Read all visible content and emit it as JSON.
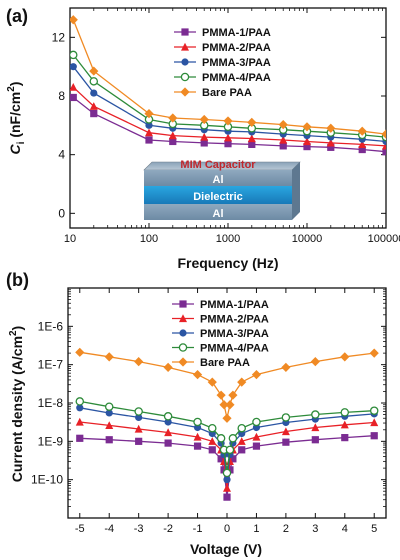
{
  "chart_data": [
    {
      "panel": "(a)",
      "type": "line",
      "xscale": "log",
      "xlabel": "Frequency (Hz)",
      "ylabel": "C_i (nF/cm^2)",
      "ylabel_parts": {
        "main": "C",
        "sub": "i",
        "unit": " (nF/cm",
        "sup": "2",
        "close": ")"
      },
      "xlim": [
        10,
        100000
      ],
      "ylim": [
        -1,
        14
      ],
      "xticks": [
        10,
        100,
        1000,
        10000,
        100000
      ],
      "yticks": [
        0,
        4,
        8,
        12
      ],
      "legend_position": "top-right",
      "series": [
        {
          "name": "PMMA-1/PAA",
          "color": "#7b2c92",
          "marker": "square",
          "x": [
            11,
            20,
            100,
            200,
            500,
            1000,
            2000,
            5000,
            10000,
            20000,
            50000,
            100000
          ],
          "y": [
            7.9,
            6.8,
            5.0,
            4.9,
            4.8,
            4.75,
            4.7,
            4.6,
            4.55,
            4.5,
            4.35,
            4.2
          ]
        },
        {
          "name": "PMMA-2/PAA",
          "color": "#e82127",
          "marker": "triangle",
          "x": [
            11,
            20,
            100,
            200,
            500,
            1000,
            2000,
            5000,
            10000,
            20000,
            50000,
            100000
          ],
          "y": [
            8.6,
            7.3,
            5.5,
            5.3,
            5.2,
            5.15,
            5.1,
            5.0,
            4.9,
            4.8,
            4.7,
            4.6
          ]
        },
        {
          "name": "PMMA-3/PAA",
          "color": "#2b55a3",
          "marker": "circle",
          "x": [
            11,
            20,
            100,
            200,
            500,
            1000,
            2000,
            5000,
            10000,
            20000,
            50000,
            100000
          ],
          "y": [
            10.0,
            8.2,
            6.0,
            5.8,
            5.7,
            5.6,
            5.55,
            5.4,
            5.3,
            5.2,
            5.05,
            4.9
          ]
        },
        {
          "name": "PMMA-4/PAA",
          "color": "#2e8b3a",
          "marker": "circle-open",
          "x": [
            11,
            20,
            100,
            200,
            500,
            1000,
            2000,
            5000,
            10000,
            20000,
            50000,
            100000
          ],
          "y": [
            10.8,
            9.0,
            6.4,
            6.1,
            6.0,
            5.9,
            5.8,
            5.7,
            5.6,
            5.5,
            5.35,
            5.2
          ]
        },
        {
          "name": "Bare PAA",
          "color": "#f08a24",
          "marker": "diamond",
          "x": [
            11,
            20,
            100,
            200,
            500,
            1000,
            2000,
            5000,
            10000,
            20000,
            50000,
            100000
          ],
          "y": [
            13.2,
            9.7,
            6.8,
            6.5,
            6.4,
            6.3,
            6.2,
            6.05,
            5.9,
            5.8,
            5.6,
            5.4
          ]
        }
      ],
      "inset": {
        "title": "MIM Capacitor",
        "layers": [
          "Al",
          "Dielectric",
          "Al"
        ]
      }
    },
    {
      "panel": "(b)",
      "type": "line",
      "yscale": "log",
      "xlabel": "Voltage (V)",
      "ylabel": "Current density (A/cm^2)",
      "ylabel_parts": {
        "main": "Current density (A/cm",
        "sup": "2",
        "close": ")"
      },
      "xlim": [
        -5.4,
        5.4
      ],
      "ylim": [
        1e-11,
        1e-05
      ],
      "xticks": [
        -5,
        -4,
        -3,
        -2,
        -1,
        0,
        1,
        2,
        3,
        4,
        5
      ],
      "ytick_labels": [
        "1E-10",
        "1E-9",
        "1E-8",
        "1E-7",
        "1E-6"
      ],
      "ytick_values": [
        1e-10,
        1e-09,
        1e-08,
        1e-07,
        1e-06
      ],
      "legend_position": "top-center",
      "series": [
        {
          "name": "PMMA-1/PAA",
          "color": "#7b2c92",
          "marker": "square",
          "x": [
            -5,
            -4,
            -3,
            -2,
            -1,
            -0.5,
            -0.2,
            -0.1,
            0,
            0.1,
            0.2,
            0.5,
            1,
            2,
            3,
            4,
            5
          ],
          "y": [
            1.2e-09,
            1.1e-09,
            1e-09,
            9e-10,
            7.5e-10,
            6e-10,
            3.5e-10,
            1.8e-10,
            3.5e-11,
            1.8e-10,
            3.5e-10,
            6e-10,
            7.5e-10,
            9.5e-10,
            1.1e-09,
            1.25e-09,
            1.4e-09
          ]
        },
        {
          "name": "PMMA-2/PAA",
          "color": "#e82127",
          "marker": "triangle",
          "x": [
            -5,
            -4,
            -3,
            -2,
            -1,
            -0.5,
            -0.2,
            -0.1,
            0,
            0.1,
            0.2,
            0.5,
            1,
            2,
            3,
            4,
            5
          ],
          "y": [
            3.2e-09,
            2.6e-09,
            2.1e-09,
            1.7e-09,
            1.3e-09,
            1e-09,
            6e-10,
            3e-10,
            6e-11,
            3e-10,
            6e-10,
            1e-09,
            1.3e-09,
            1.8e-09,
            2.3e-09,
            2.7e-09,
            3.1e-09
          ]
        },
        {
          "name": "PMMA-3/PAA",
          "color": "#2b55a3",
          "marker": "circle",
          "x": [
            -5,
            -4,
            -3,
            -2,
            -1,
            -0.5,
            -0.2,
            -0.1,
            0,
            0.1,
            0.2,
            0.5,
            1,
            2,
            3,
            4,
            5
          ],
          "y": [
            7.5e-09,
            5.5e-09,
            4.2e-09,
            3.2e-09,
            2.3e-09,
            1.6e-09,
            9e-10,
            4.5e-10,
            1e-10,
            4.5e-10,
            9e-10,
            1.6e-09,
            2.3e-09,
            3.1e-09,
            3.8e-09,
            4.5e-09,
            5.2e-09
          ]
        },
        {
          "name": "PMMA-4/PAA",
          "color": "#2e8b3a",
          "marker": "circle-open",
          "x": [
            -5,
            -4,
            -3,
            -2,
            -1,
            -0.5,
            -0.2,
            -0.1,
            0,
            0.1,
            0.2,
            0.5,
            1,
            2,
            3,
            4,
            5
          ],
          "y": [
            1.1e-08,
            8e-09,
            6e-09,
            4.5e-09,
            3.2e-09,
            2.2e-09,
            1.2e-09,
            6e-10,
            1.5e-10,
            6e-10,
            1.2e-09,
            2.2e-09,
            3.2e-09,
            4.2e-09,
            5e-09,
            5.7e-09,
            6.3e-09
          ]
        },
        {
          "name": "Bare PAA",
          "color": "#f08a24",
          "marker": "diamond",
          "x": [
            -5,
            -4,
            -3,
            -2,
            -1,
            -0.5,
            -0.2,
            -0.1,
            0,
            0.1,
            0.2,
            0.5,
            1,
            2,
            3,
            4,
            5
          ],
          "y": [
            2.1e-07,
            1.6e-07,
            1.2e-07,
            8.5e-08,
            5.5e-08,
            3.5e-08,
            1.6e-08,
            9e-09,
            4e-09,
            9e-09,
            1.6e-08,
            3.5e-08,
            5.5e-08,
            8.5e-08,
            1.2e-07,
            1.6e-07,
            2e-07
          ]
        }
      ]
    }
  ]
}
